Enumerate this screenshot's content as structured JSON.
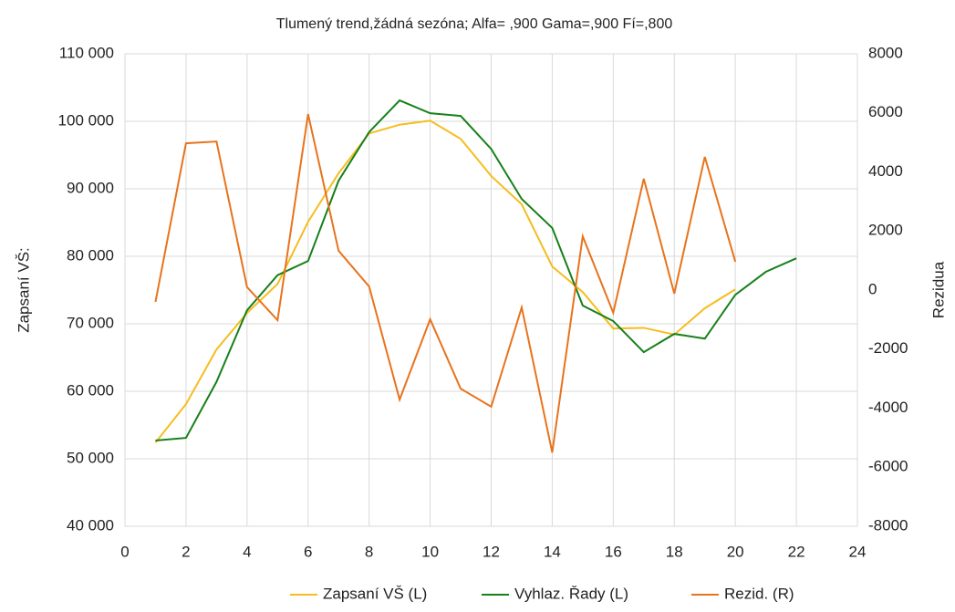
{
  "chart_data": {
    "type": "line",
    "title": "Tlumený trend,žádná sezóna; Alfa=  ,900 Gama=,900 Fí=,800",
    "y_label": "Zapsaní VŠ:",
    "y2_label": "Rezidua",
    "x": [
      1,
      2,
      3,
      4,
      5,
      6,
      7,
      8,
      9,
      10,
      11,
      12,
      13,
      14,
      15,
      16,
      17,
      18,
      19,
      20,
      21,
      22
    ],
    "series": [
      {
        "name": "Zapsaní VŠ (L)",
        "color": "#f5bd1f",
        "values": [
          52400,
          58100,
          66200,
          71600,
          75900,
          85100,
          92300,
          98200,
          99500,
          100100,
          97400,
          91900,
          87700,
          78500,
          74700,
          69300,
          69400,
          68400,
          72300,
          75100,
          null,
          null
        ]
      },
      {
        "name": "Vyhlaz. Řady (L)",
        "color": "#17801a",
        "values": [
          52700,
          53100,
          61400,
          72000,
          77200,
          79300,
          91200,
          98400,
          103100,
          101200,
          100800,
          95900,
          88500,
          84200,
          72700,
          70400,
          65800,
          68500,
          67800,
          74300,
          77700,
          79700
        ]
      },
      {
        "name": "Rezid. (R)",
        "color": "#e8731c",
        "axis": "y2",
        "values": [
          -400,
          4970,
          5030,
          100,
          -1020,
          5960,
          1330,
          120,
          -3710,
          -990,
          -3340,
          -3950,
          -590,
          -5500,
          1820,
          -770,
          3770,
          -120,
          4510,
          960,
          null,
          null
        ]
      }
    ],
    "xlim": [
      0,
      24
    ],
    "xticks": [
      0,
      2,
      4,
      6,
      8,
      10,
      12,
      14,
      16,
      18,
      20,
      22,
      24
    ],
    "ylim": [
      40000,
      110000
    ],
    "yticks": [
      {
        "value": 40000,
        "label": "40 000"
      },
      {
        "value": 50000,
        "label": "50 000"
      },
      {
        "value": 60000,
        "label": "60 000"
      },
      {
        "value": 70000,
        "label": "70 000"
      },
      {
        "value": 80000,
        "label": "80 000"
      },
      {
        "value": 90000,
        "label": "90 000"
      },
      {
        "value": 100000,
        "label": "100 000"
      },
      {
        "value": 110000,
        "label": "110 000"
      }
    ],
    "y2lim": [
      -8000,
      8000
    ],
    "y2ticks": [
      -8000,
      -6000,
      -4000,
      -2000,
      0,
      2000,
      4000,
      6000,
      8000
    ],
    "grid": true,
    "legend": "bottom"
  }
}
